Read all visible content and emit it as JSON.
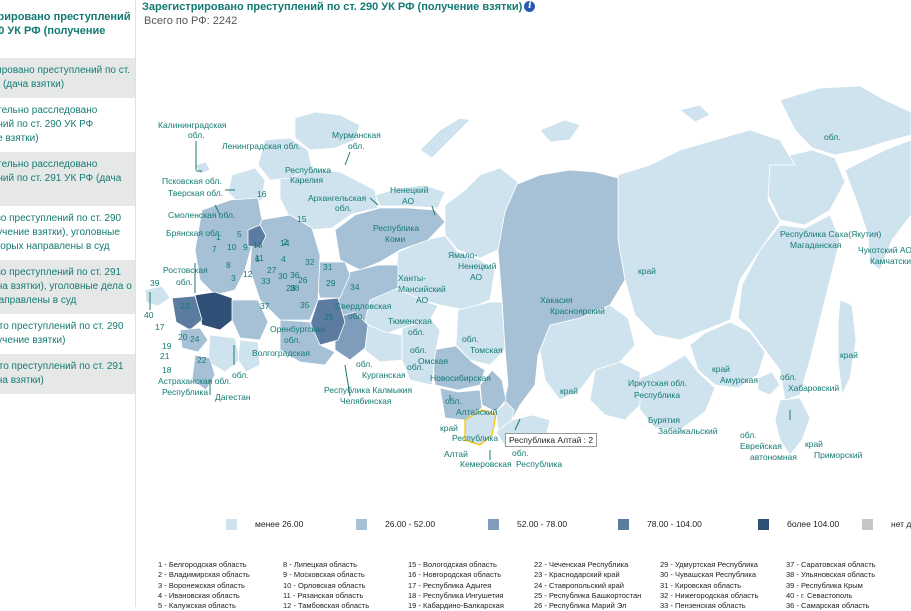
{
  "sidebar": {
    "header_lines": [
      "стрировано преступлений",
      "290 УК РФ (получение",
      ")"
    ],
    "items": [
      {
        "lines": [
          "трировано преступлений по ст.",
          "РФ (дача взятки)"
        ],
        "shaded": true
      },
      {
        "lines": [
          "рительно расследовано",
          "лений по ст. 290 УК РФ",
          "ние взятки)"
        ],
        "shaded": false
      },
      {
        "lines": [
          "рительно расследовано",
          "лений по ст. 291 УК РФ (дача",
          ""
        ],
        "shaded": true
      },
      {
        "lines": [
          "ство преступлений по ст. 290",
          "олучение взятки), уголовные",
          "которых направлены в суд"
        ],
        "shaded": false
      },
      {
        "lines": [
          "ство преступлений по ст. 291",
          "дача взятки), уголовные дела о",
          "к направлены в суд"
        ],
        "shaded": true
      },
      {
        "lines": [
          "рыто преступлений по ст. 290",
          "олучение взятки)"
        ],
        "shaded": false
      },
      {
        "lines": [
          "рыто преступлений по ст. 291",
          "дача взятки)"
        ],
        "shaded": true
      }
    ]
  },
  "title": "Зарегистрировано преступлений по ст. 290 УК РФ (получение взятки)",
  "info_icon": "i",
  "total": "Всего по РФ: 2242",
  "tooltip": "Республика Алтай : 2",
  "legend": [
    {
      "label": "менее 26.00",
      "color": "#cfe3ee"
    },
    {
      "label": "26.00 - 52.00",
      "color": "#a6c1d6"
    },
    {
      "label": "52.00 - 78.00",
      "color": "#7f9dbb"
    },
    {
      "label": "78.00 - 104.00",
      "color": "#5c7ba1"
    },
    {
      "label": "более 104.00",
      "color": "#2f4f76"
    },
    {
      "label": "нет данных",
      "color": "#c6c6c6"
    }
  ],
  "map_labels": [
    "Калининградская",
    "обл.",
    "Ленинградская обл.",
    "Мурманская",
    "обл.",
    "Республика",
    "Карелия",
    "Псковская обл.",
    "Тверская обл.",
    "Смоленская обл.",
    "Брянская обл.",
    "Архангельская",
    "обл.",
    "Ненецкий",
    "АО",
    "Республика",
    "Коми",
    "Ямало-",
    "Ненецкий",
    "АО",
    "Ханты-",
    "Мансийский",
    "АО",
    "Ростовская",
    "обл.",
    "Свердловская",
    "обл.",
    "Тюменская",
    "обл.",
    "Оренбургская",
    "обл.",
    "Волгоградская",
    "обл.",
    "Астраханская обл.",
    "Республика",
    "Дагестан",
    "Республика Калмыкия",
    "Челябинская",
    "обл.",
    "Курганская",
    "обл.",
    "Омская",
    "обл.",
    "Новосибирская",
    "обл.",
    "Томская",
    "обл.",
    "Алтайский",
    "край",
    "Республика",
    "Алтай",
    "Кемеровская",
    "обл.",
    "Республика",
    "Хакасия",
    "Красноярский",
    "край",
    "Иркутская обл.",
    "Республика",
    "Бурятия",
    "Забайкальский",
    "край",
    "Амурская",
    "обл.",
    "Еврейская",
    "автономная",
    "обл.",
    "Хабаровский",
    "край",
    "Приморский",
    "край",
    "Республика Саха(Якутия)",
    "Магаданская",
    "обл.",
    "Чукотский АО",
    "Камчатский",
    "край",
    "Сахалинская обл."
  ],
  "region_numbers": [
    "1",
    "2",
    "3",
    "4",
    "5",
    "6",
    "7",
    "8",
    "9",
    "10",
    "11",
    "12",
    "13",
    "14",
    "15",
    "16",
    "17",
    "18",
    "19",
    "20",
    "21",
    "22",
    "23",
    "24",
    "25",
    "26",
    "27",
    "28",
    "29",
    "30",
    "31",
    "32",
    "33",
    "34",
    "35",
    "36",
    "37",
    "38",
    "39",
    "40"
  ],
  "key_columns": [
    [
      "1 - Белгородская область",
      "2 - Владимирская область",
      "3 - Воронежская область",
      "4 - Ивановская область",
      "5 - Калужская область"
    ],
    [
      "8 - Липецкая область",
      "9 - Московская область",
      "10 - Орловская область",
      "11 - Рязанская область",
      "12 - Тамбовская область"
    ],
    [
      "15 - Вологодская область",
      "16 - Новгородская область",
      "17 - Республика Адыгея",
      "18 - Республика Ингушетия",
      "19 - Кабардино-Балкарская"
    ],
    [
      "22 - Чеченская Республика",
      "23 - Краснодарский край",
      "24 - Ставропольский край",
      "25 - Республика Башкортостан",
      "26 - Республика Марий Эл"
    ],
    [
      "29 - Удмуртская Республика",
      "30 - Чувашская Республика",
      "31 - Кировская область",
      "32 - Нижегородская область",
      "33 - Пензенская область"
    ],
    [
      "37 - Саратовская область",
      "38 - Ульяновская область",
      "39 - Республика Крым",
      "40 - г. Севастополь",
      "36 - Самарская область"
    ]
  ]
}
